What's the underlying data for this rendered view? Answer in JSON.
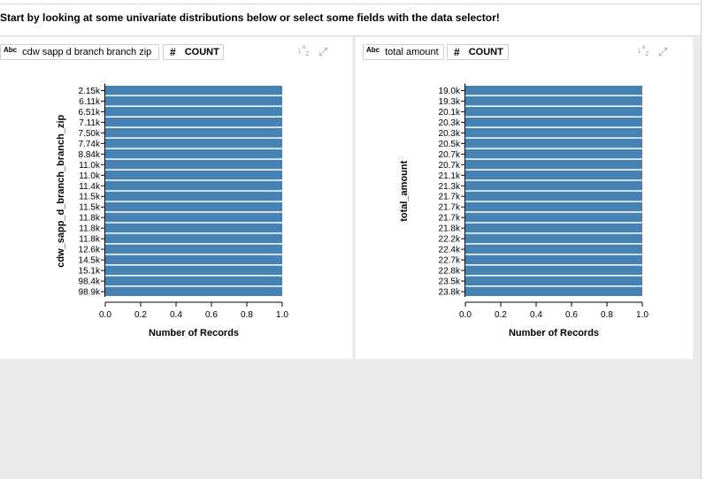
{
  "header": {
    "instruction": "Start by looking at some univariate distributions below or select some fields with the data selector!"
  },
  "icons": {
    "dimension": "Abc",
    "measure": "#",
    "sort": "sort-icon",
    "expand": "expand-icon"
  },
  "colors": {
    "bar": "#4682b4"
  },
  "panels": [
    {
      "field_label": "cdw sapp d branch branch zip",
      "measure_label": "COUNT"
    },
    {
      "field_label": "total amount",
      "measure_label": "COUNT"
    }
  ],
  "chart_data": [
    {
      "type": "bar",
      "orientation": "horizontal",
      "ylabel": "cdw_sapp_d_branch_branch_zip",
      "xlabel": "Number of Records",
      "categories": [
        "2.15k",
        "6.11k",
        "6.51k",
        "7.11k",
        "7.50k",
        "7.74k",
        "8.84k",
        "11.0k",
        "11.0k",
        "11.4k",
        "11.5k",
        "11.5k",
        "11.8k",
        "11.8k",
        "11.8k",
        "12.6k",
        "14.5k",
        "15.1k",
        "98.4k",
        "98.9k"
      ],
      "values": [
        1,
        1,
        1,
        1,
        1,
        1,
        1,
        1,
        1,
        1,
        1,
        1,
        1,
        1,
        1,
        1,
        1,
        1,
        1,
        1
      ],
      "xlim": [
        0,
        1
      ],
      "xticks": [
        "0.0",
        "0.2",
        "0.4",
        "0.6",
        "0.8",
        "1.0"
      ],
      "grid": false
    },
    {
      "type": "bar",
      "orientation": "horizontal",
      "ylabel": "total_amount",
      "xlabel": "Number of Records",
      "categories": [
        "19.0k",
        "19.3k",
        "20.1k",
        "20.3k",
        "20.3k",
        "20.5k",
        "20.7k",
        "20.7k",
        "21.1k",
        "21.3k",
        "21.7k",
        "21.7k",
        "21.7k",
        "21.8k",
        "22.2k",
        "22.4k",
        "22.7k",
        "22.8k",
        "23.5k",
        "23.8k"
      ],
      "values": [
        1,
        1,
        1,
        1,
        1,
        1,
        1,
        1,
        1,
        1,
        1,
        1,
        1,
        1,
        1,
        1,
        1,
        1,
        1,
        1
      ],
      "xlim": [
        0,
        1
      ],
      "xticks": [
        "0.0",
        "0.2",
        "0.4",
        "0.6",
        "0.8",
        "1.0"
      ],
      "grid": false
    }
  ]
}
